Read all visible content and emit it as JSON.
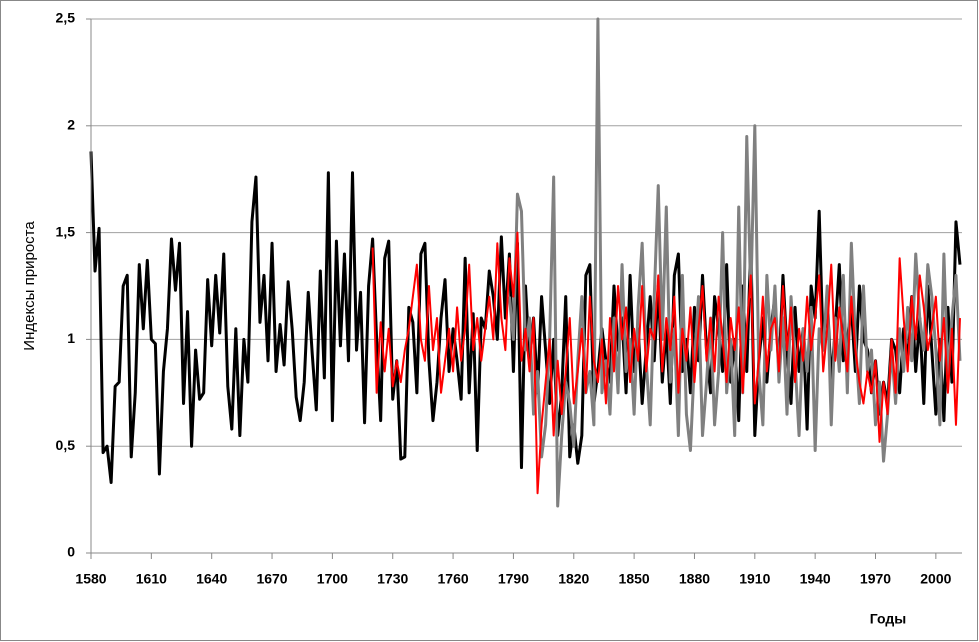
{
  "chart_data": {
    "type": "line",
    "y_label": "Индексы прироста",
    "x_label": "Годы",
    "xlim": [
      1580,
      2013
    ],
    "xticks": [
      1580,
      1610,
      1640,
      1670,
      1700,
      1730,
      1760,
      1790,
      1820,
      1850,
      1880,
      1910,
      1940,
      1970,
      2000
    ],
    "ylim": [
      0,
      2.5
    ],
    "yticks": [
      0,
      {
        "value": 0.5,
        "label": "0,5"
      },
      1,
      {
        "value": 1.5,
        "label": "1,5"
      },
      2,
      {
        "value": 2.5,
        "label": "2,5"
      }
    ],
    "grid": true,
    "x": [
      1580,
      1582,
      1584,
      1586,
      1588,
      1590,
      1592,
      1594,
      1596,
      1598,
      1600,
      1602,
      1604,
      1606,
      1608,
      1610,
      1612,
      1614,
      1616,
      1618,
      1620,
      1622,
      1624,
      1626,
      1628,
      1630,
      1632,
      1634,
      1636,
      1638,
      1640,
      1642,
      1644,
      1646,
      1648,
      1650,
      1652,
      1654,
      1656,
      1658,
      1660,
      1662,
      1664,
      1666,
      1668,
      1670,
      1672,
      1674,
      1676,
      1678,
      1680,
      1682,
      1684,
      1686,
      1688,
      1690,
      1692,
      1694,
      1696,
      1698,
      1700,
      1702,
      1704,
      1706,
      1708,
      1710,
      1712,
      1714,
      1716,
      1718,
      1720,
      1722,
      1724,
      1726,
      1728,
      1730,
      1732,
      1734,
      1736,
      1738,
      1740,
      1742,
      1744,
      1746,
      1748,
      1750,
      1752,
      1754,
      1756,
      1758,
      1760,
      1762,
      1764,
      1766,
      1768,
      1770,
      1772,
      1774,
      1776,
      1778,
      1780,
      1782,
      1784,
      1786,
      1788,
      1790,
      1792,
      1794,
      1796,
      1798,
      1800,
      1802,
      1804,
      1806,
      1808,
      1810,
      1812,
      1814,
      1816,
      1818,
      1820,
      1822,
      1824,
      1826,
      1828,
      1830,
      1832,
      1834,
      1836,
      1838,
      1840,
      1842,
      1844,
      1846,
      1848,
      1850,
      1852,
      1854,
      1856,
      1858,
      1860,
      1862,
      1864,
      1866,
      1868,
      1870,
      1872,
      1874,
      1876,
      1878,
      1880,
      1882,
      1884,
      1886,
      1888,
      1890,
      1892,
      1894,
      1896,
      1898,
      1900,
      1902,
      1904,
      1906,
      1908,
      1910,
      1912,
      1914,
      1916,
      1918,
      1920,
      1922,
      1924,
      1926,
      1928,
      1930,
      1932,
      1934,
      1936,
      1938,
      1940,
      1942,
      1944,
      1946,
      1948,
      1950,
      1952,
      1954,
      1956,
      1958,
      1960,
      1962,
      1964,
      1966,
      1968,
      1970,
      1972,
      1974,
      1976,
      1978,
      1980,
      1982,
      1984,
      1986,
      1988,
      1990,
      1992,
      1994,
      1996,
      1998,
      2000,
      2002,
      2004,
      2006,
      2008,
      2010,
      2012
    ],
    "series": [
      {
        "color": "#000000",
        "width": 3,
        "values": [
          1.88,
          1.32,
          1.52,
          0.47,
          0.5,
          0.33,
          0.78,
          0.8,
          1.25,
          1.3,
          0.45,
          0.75,
          1.35,
          1.05,
          1.37,
          1.0,
          0.98,
          0.37,
          0.85,
          1.05,
          1.47,
          1.23,
          1.45,
          0.7,
          1.13,
          0.5,
          0.95,
          0.72,
          0.75,
          1.28,
          0.97,
          1.3,
          1.03,
          1.4,
          0.78,
          0.58,
          1.05,
          0.55,
          1.0,
          0.8,
          1.55,
          1.76,
          1.08,
          1.3,
          0.9,
          1.45,
          0.85,
          1.07,
          0.88,
          1.27,
          1.05,
          0.73,
          0.62,
          0.8,
          1.22,
          0.93,
          0.67,
          1.32,
          0.82,
          1.78,
          0.62,
          1.46,
          0.97,
          1.4,
          0.9,
          1.78,
          0.95,
          1.22,
          0.61,
          1.25,
          1.47,
          1.0,
          0.62,
          1.38,
          1.46,
          0.72,
          0.9,
          0.44,
          0.45,
          1.15,
          1.08,
          0.75,
          1.4,
          1.45,
          0.9,
          0.62,
          0.8,
          1.1,
          1.28,
          0.85,
          1.05,
          0.9,
          0.72,
          1.38,
          0.75,
          1.12,
          0.48,
          1.1,
          1.05,
          1.32,
          1.2,
          1.0,
          1.48,
          1.1,
          1.4,
          0.85,
          1.45,
          0.4,
          1.25,
          0.9,
          1.1,
          0.75,
          1.2,
          0.95,
          0.7,
          1.0,
          0.55,
          0.75,
          1.2,
          0.45,
          0.6,
          0.42,
          0.55,
          1.3,
          1.35,
          0.7,
          0.85,
          1.05,
          0.9,
          0.8,
          1.25,
          0.95,
          1.1,
          0.75,
          1.3,
          0.85,
          1.05,
          0.7,
          0.95,
          1.2,
          0.9,
          1.25,
          0.8,
          1.05,
          0.7,
          1.3,
          1.4,
          0.85,
          1.0,
          0.75,
          1.15,
          0.9,
          1.3,
          0.95,
          0.75,
          1.2,
          1.05,
          0.85,
          1.35,
          0.8,
          1.0,
          0.62,
          1.25,
          0.85,
          1.45,
          0.55,
          0.9,
          1.1,
          0.8,
          1.05,
          1.2,
          0.85,
          1.3,
          0.95,
          0.7,
          1.15,
          0.85,
          1.05,
          0.58,
          1.25,
          1.1,
          1.6,
          0.95,
          1.2,
          0.8,
          1.05,
          1.35,
          0.9,
          1.0,
          1.15,
          0.85,
          1.25,
          1.0,
          0.95,
          0.75,
          0.9,
          0.65,
          0.8,
          0.7,
          1.0,
          0.95,
          0.75,
          1.05,
          0.9,
          1.2,
          0.85,
          1.1,
          0.7,
          1.25,
          0.95,
          0.65,
          1.0,
          0.62,
          1.15,
          0.8,
          1.55,
          1.35
        ]
      },
      {
        "color": "#808080",
        "width": 3,
        "values": [
          null,
          null,
          null,
          null,
          null,
          null,
          null,
          null,
          null,
          null,
          null,
          null,
          null,
          null,
          null,
          null,
          null,
          null,
          null,
          null,
          null,
          null,
          null,
          null,
          null,
          null,
          null,
          null,
          null,
          null,
          null,
          null,
          null,
          null,
          null,
          null,
          null,
          null,
          null,
          null,
          null,
          null,
          null,
          null,
          null,
          null,
          null,
          null,
          null,
          null,
          null,
          null,
          null,
          null,
          null,
          null,
          null,
          null,
          null,
          null,
          null,
          null,
          null,
          null,
          null,
          null,
          null,
          null,
          null,
          null,
          null,
          null,
          null,
          null,
          null,
          null,
          null,
          null,
          null,
          null,
          null,
          null,
          null,
          null,
          null,
          null,
          null,
          null,
          null,
          null,
          null,
          null,
          null,
          null,
          null,
          null,
          null,
          null,
          null,
          null,
          null,
          null,
          null,
          null,
          1.2,
          1.0,
          1.68,
          1.6,
          0.95,
          1.1,
          0.65,
          0.85,
          0.45,
          0.6,
          1.0,
          1.76,
          0.22,
          0.55,
          0.8,
          0.7,
          0.5,
          0.9,
          1.2,
          0.75,
          0.85,
          0.6,
          2.5,
          0.75,
          0.9,
          0.65,
          1.1,
          0.75,
          1.35,
          0.85,
          1.0,
          0.65,
          1.15,
          1.45,
          0.9,
          0.6,
          1.2,
          1.72,
          1.0,
          1.62,
          0.8,
          1.05,
          0.55,
          1.3,
          0.65,
          0.48,
          0.9,
          1.2,
          0.55,
          0.8,
          1.1,
          0.6,
          0.85,
          1.5,
          0.75,
          1.0,
          0.55,
          1.62,
          0.75,
          1.95,
          1.2,
          2.0,
          0.85,
          0.6,
          1.3,
          0.95,
          1.25,
          0.8,
          1.1,
          0.65,
          1.2,
          0.9,
          0.55,
          1.05,
          0.85,
          1.15,
          0.48,
          1.05,
          0.95,
          1.25,
          0.6,
          1.1,
          0.85,
          1.3,
          0.75,
          1.45,
          1.0,
          0.7,
          1.25,
          0.85,
          0.95,
          0.6,
          0.8,
          0.43,
          0.65,
          0.95,
          0.7,
          1.05,
          0.85,
          1.15,
          0.9,
          1.4,
          1.1,
          0.95,
          1.35,
          1.2,
          0.95,
          0.6,
          1.4,
          0.8,
          1.1,
          1.3,
          0.9
        ]
      },
      {
        "color": "#ff0000",
        "width": 2,
        "values": [
          null,
          null,
          null,
          null,
          null,
          null,
          null,
          null,
          null,
          null,
          null,
          null,
          null,
          null,
          null,
          null,
          null,
          null,
          null,
          null,
          null,
          null,
          null,
          null,
          null,
          null,
          null,
          null,
          null,
          null,
          null,
          null,
          null,
          null,
          null,
          null,
          null,
          null,
          null,
          null,
          null,
          null,
          null,
          null,
          null,
          null,
          null,
          null,
          null,
          null,
          null,
          null,
          null,
          null,
          null,
          null,
          null,
          null,
          null,
          null,
          null,
          null,
          null,
          null,
          null,
          null,
          null,
          null,
          null,
          null,
          1.43,
          0.75,
          1.08,
          0.85,
          1.05,
          0.78,
          0.9,
          0.8,
          0.95,
          1.05,
          1.2,
          1.35,
          1.0,
          0.9,
          1.25,
          0.95,
          1.1,
          0.75,
          0.9,
          1.05,
          0.85,
          1.15,
          0.9,
          1.05,
          1.35,
          0.95,
          1.1,
          0.9,
          1.05,
          1.2,
          1.0,
          1.45,
          1.1,
          0.95,
          1.38,
          1.2,
          1.5,
          0.9,
          1.05,
          0.85,
          1.1,
          0.28,
          0.6,
          0.8,
          1.0,
          0.55,
          0.9,
          0.65,
          0.85,
          1.1,
          0.7,
          0.85,
          1.05,
          0.75,
          1.2,
          0.9,
          0.8,
          1.0,
          0.7,
          1.1,
          0.85,
          1.25,
          1.0,
          1.15,
          0.8,
          1.05,
          0.9,
          1.25,
          0.85,
          1.05,
          1.0,
          1.3,
          0.85,
          1.1,
          0.95,
          1.2,
          0.75,
          1.05,
          0.9,
          1.15,
          0.8,
          1.05,
          1.25,
          0.9,
          1.1,
          0.85,
          1.2,
          1.0,
          0.8,
          1.1,
          0.95,
          1.15,
          0.75,
          1.05,
          1.3,
          0.7,
          0.9,
          1.2,
          0.85,
          1.05,
          1.1,
          0.85,
          1.25,
          0.95,
          1.15,
          0.8,
          1.05,
          0.9,
          1.2,
          0.95,
          1.1,
          1.3,
          0.85,
          1.05,
          1.35,
          0.9,
          1.15,
          1.0,
          0.85,
          1.2,
          0.95,
          0.8,
          0.7,
          0.85,
          0.75,
          0.9,
          0.52,
          0.8,
          0.65,
          1.0,
          0.75,
          1.38,
          1.1,
          0.85,
          1.2,
          1.0,
          1.3,
          1.15,
          0.95,
          1.05,
          1.2,
          0.9,
          1.1,
          0.75,
          1.05,
          0.6,
          1.1
        ]
      }
    ]
  }
}
